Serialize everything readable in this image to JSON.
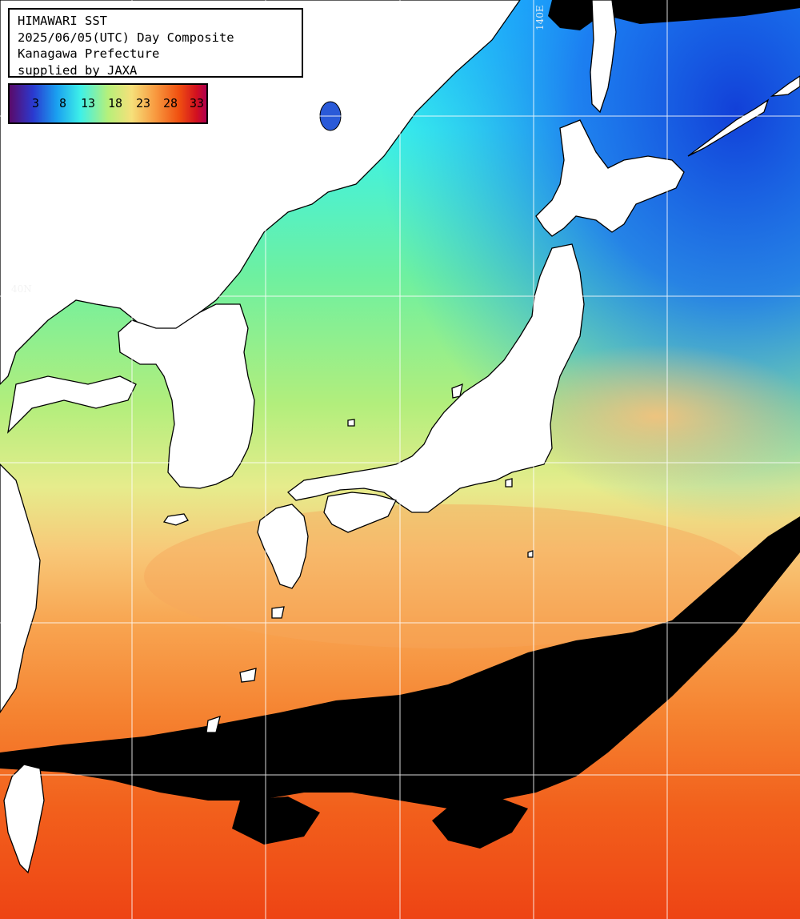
{
  "title_box": {
    "line1": "HIMAWARI SST",
    "line2": "2025/06/05(UTC) Day Composite",
    "line3": "Kanagawa Prefecture",
    "line4": "supplied by JAXA"
  },
  "colorbar": {
    "ticks": [
      "3",
      "8",
      "13",
      "18",
      "23",
      "28",
      "33"
    ],
    "stops": [
      "#5a0a6a",
      "#2a3ad0",
      "#1aa0f0",
      "#3ef0e8",
      "#b6f07a",
      "#f6e07a",
      "#f89a40",
      "#f05010",
      "#d21020",
      "#b00050"
    ]
  },
  "grid_labels": {
    "latitude": "40N",
    "longitude": "140E"
  },
  "colors": {
    "land": "#ffffff",
    "cloud": "#000000",
    "gridline": "#ffffff"
  }
}
